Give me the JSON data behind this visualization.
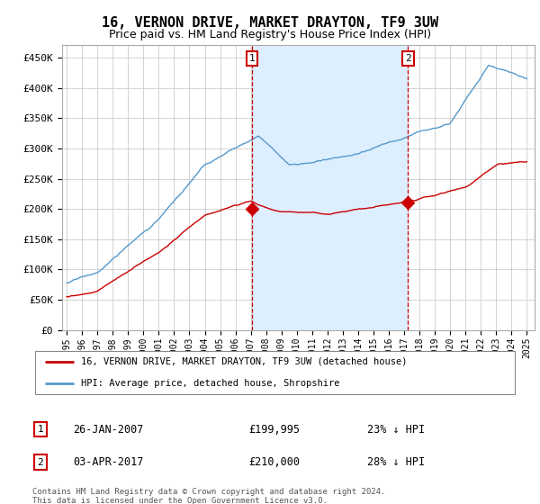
{
  "title": "16, VERNON DRIVE, MARKET DRAYTON, TF9 3UW",
  "subtitle": "Price paid vs. HM Land Registry's House Price Index (HPI)",
  "ylim": [
    0,
    470000
  ],
  "yticks": [
    0,
    50000,
    100000,
    150000,
    200000,
    250000,
    300000,
    350000,
    400000,
    450000
  ],
  "ytick_labels": [
    "£0",
    "£50K",
    "£100K",
    "£150K",
    "£200K",
    "£250K",
    "£300K",
    "£350K",
    "£400K",
    "£450K"
  ],
  "xlim_start": 1994.7,
  "xlim_end": 2025.5,
  "xtick_years": [
    1995,
    1996,
    1997,
    1998,
    1999,
    2000,
    2001,
    2002,
    2003,
    2004,
    2005,
    2006,
    2007,
    2008,
    2009,
    2010,
    2011,
    2012,
    2013,
    2014,
    2015,
    2016,
    2017,
    2018,
    2019,
    2020,
    2021,
    2022,
    2023,
    2024,
    2025
  ],
  "hpi_color": "#5599cc",
  "price_color": "#cc0000",
  "shade_color": "#ddeeff",
  "marker1_x": 2007.07,
  "marker1_y": 199995,
  "marker2_x": 2017.25,
  "marker2_y": 210000,
  "annotation1_date": "26-JAN-2007",
  "annotation1_price": "£199,995",
  "annotation1_hpi": "23% ↓ HPI",
  "annotation2_date": "03-APR-2017",
  "annotation2_price": "£210,000",
  "annotation2_hpi": "28% ↓ HPI",
  "legend_line1": "16, VERNON DRIVE, MARKET DRAYTON, TF9 3UW (detached house)",
  "legend_line2": "HPI: Average price, detached house, Shropshire",
  "footer": "Contains HM Land Registry data © Crown copyright and database right 2024.\nThis data is licensed under the Open Government Licence v3.0.",
  "background_color": "#ffffff",
  "grid_color": "#cccccc",
  "title_fontsize": 11,
  "subtitle_fontsize": 9
}
